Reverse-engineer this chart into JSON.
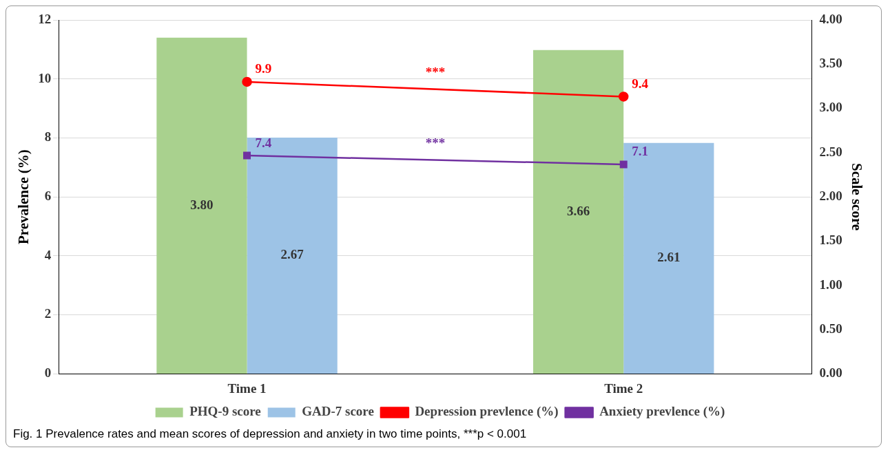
{
  "chart_data": {
    "type": "bar",
    "categories": [
      "Time 1",
      "Time 2"
    ],
    "ylabel": "Prevalence (%)",
    "y2label": "Scale score",
    "ylim": [
      0,
      12
    ],
    "yticks": [
      0,
      2,
      4,
      6,
      8,
      10,
      12
    ],
    "y2lim": [
      0,
      4
    ],
    "y2ticks": [
      {
        "value": 0,
        "label": "0.00"
      },
      {
        "value": 0.5,
        "label": "0.50"
      },
      {
        "value": 1,
        "label": "1.00"
      },
      {
        "value": 1.5,
        "label": "1.50"
      },
      {
        "value": 2,
        "label": "2.00"
      },
      {
        "value": 2.5,
        "label": "2.50"
      },
      {
        "value": 3,
        "label": "3.00"
      },
      {
        "value": 3.5,
        "label": "3.50"
      },
      {
        "value": 4,
        "label": "4.00"
      }
    ],
    "grid": "y",
    "legend": "bottom",
    "series": [
      {
        "name": "PHQ-9 score",
        "axis": "y2",
        "color": "#a9d18e",
        "values": [
          3.8,
          3.66
        ],
        "value_labels": [
          "3.80",
          "3.66"
        ]
      },
      {
        "name": "GAD-7 score",
        "axis": "y2",
        "color": "#9dc3e6",
        "values": [
          2.67,
          2.61
        ],
        "value_labels": [
          "2.67",
          "2.61"
        ]
      },
      {
        "name": "Depression prevlence (%)",
        "type": "line",
        "color": "#ff0000",
        "marker": "circle",
        "values": [
          9.9,
          9.4
        ],
        "value_labels": [
          "9.9",
          "9.4"
        ]
      },
      {
        "name": "Anxiety prevlence (%)",
        "type": "line",
        "color": "#7030a0",
        "marker": "square",
        "values": [
          7.4,
          7.1
        ],
        "value_labels": [
          "7.4",
          "7.1"
        ]
      }
    ],
    "annotations": [
      "***",
      "***",
      "Fig. 1 Prevalence rates and mean scores of depression and anxiety in two time points, ***p < 0.001"
    ]
  }
}
